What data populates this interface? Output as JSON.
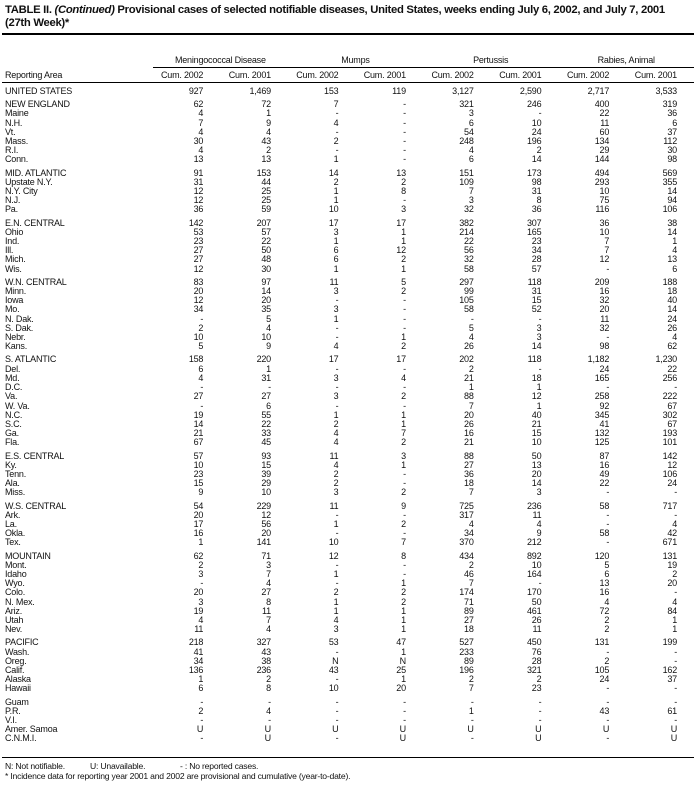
{
  "title": {
    "prefix": "TABLE II. ",
    "italic": "(Continued)",
    "text": " Provisional cases of selected notifiable diseases, United States, weeks ending July 6, 2002, and July 7, 2001 (27th Week)*"
  },
  "header": {
    "area_label": "Reporting Area",
    "groups": [
      "Meningococcal Disease",
      "Mumps",
      "Pertussis",
      "Rabies, Animal"
    ],
    "subcols": [
      "Cum. 2002",
      "Cum. 2001",
      "Cum. 2002",
      "Cum. 2001",
      "Cum. 2002",
      "Cum. 2001",
      "Cum. 2002",
      "Cum. 2001"
    ]
  },
  "sections": [
    [
      [
        "UNITED STATES",
        "927",
        "1,469",
        "153",
        "119",
        "3,127",
        "2,590",
        "2,717",
        "3,533"
      ]
    ],
    [
      [
        "NEW ENGLAND",
        "62",
        "72",
        "7",
        "-",
        "321",
        "246",
        "400",
        "319"
      ],
      [
        "Maine",
        "4",
        "1",
        "-",
        "-",
        "3",
        "-",
        "22",
        "36"
      ],
      [
        "N.H.",
        "7",
        "9",
        "4",
        "-",
        "6",
        "10",
        "11",
        "6"
      ],
      [
        "Vt.",
        "4",
        "4",
        "-",
        "-",
        "54",
        "24",
        "60",
        "37"
      ],
      [
        "Mass.",
        "30",
        "43",
        "2",
        "-",
        "248",
        "196",
        "134",
        "112"
      ],
      [
        "R.I.",
        "4",
        "2",
        "-",
        "-",
        "4",
        "2",
        "29",
        "30"
      ],
      [
        "Conn.",
        "13",
        "13",
        "1",
        "-",
        "6",
        "14",
        "144",
        "98"
      ]
    ],
    [
      [
        "MID. ATLANTIC",
        "91",
        "153",
        "14",
        "13",
        "151",
        "173",
        "494",
        "569"
      ],
      [
        "Upstate N.Y.",
        "31",
        "44",
        "2",
        "2",
        "109",
        "98",
        "293",
        "355"
      ],
      [
        "N.Y. City",
        "12",
        "25",
        "1",
        "8",
        "7",
        "31",
        "10",
        "14"
      ],
      [
        "N.J.",
        "12",
        "25",
        "1",
        "-",
        "3",
        "8",
        "75",
        "94"
      ],
      [
        "Pa.",
        "36",
        "59",
        "10",
        "3",
        "32",
        "36",
        "116",
        "106"
      ]
    ],
    [
      [
        "E.N. CENTRAL",
        "142",
        "207",
        "17",
        "17",
        "382",
        "307",
        "36",
        "38"
      ],
      [
        "Ohio",
        "53",
        "57",
        "3",
        "1",
        "214",
        "165",
        "10",
        "14"
      ],
      [
        "Ind.",
        "23",
        "22",
        "1",
        "1",
        "22",
        "23",
        "7",
        "1"
      ],
      [
        "Ill.",
        "27",
        "50",
        "6",
        "12",
        "56",
        "34",
        "7",
        "4"
      ],
      [
        "Mich.",
        "27",
        "48",
        "6",
        "2",
        "32",
        "28",
        "12",
        "13"
      ],
      [
        "Wis.",
        "12",
        "30",
        "1",
        "1",
        "58",
        "57",
        "-",
        "6"
      ]
    ],
    [
      [
        "W.N. CENTRAL",
        "83",
        "97",
        "11",
        "5",
        "297",
        "118",
        "209",
        "188"
      ],
      [
        "Minn.",
        "20",
        "14",
        "3",
        "2",
        "99",
        "31",
        "16",
        "18"
      ],
      [
        "Iowa",
        "12",
        "20",
        "-",
        "-",
        "105",
        "15",
        "32",
        "40"
      ],
      [
        "Mo.",
        "34",
        "35",
        "3",
        "-",
        "58",
        "52",
        "20",
        "14"
      ],
      [
        "N. Dak.",
        "-",
        "5",
        "1",
        "-",
        "-",
        "-",
        "11",
        "24"
      ],
      [
        "S. Dak.",
        "2",
        "4",
        "-",
        "-",
        "5",
        "3",
        "32",
        "26"
      ],
      [
        "Nebr.",
        "10",
        "10",
        "-",
        "1",
        "4",
        "3",
        "-",
        "4"
      ],
      [
        "Kans.",
        "5",
        "9",
        "4",
        "2",
        "26",
        "14",
        "98",
        "62"
      ]
    ],
    [
      [
        "S. ATLANTIC",
        "158",
        "220",
        "17",
        "17",
        "202",
        "118",
        "1,182",
        "1,230"
      ],
      [
        "Del.",
        "6",
        "1",
        "-",
        "-",
        "2",
        "-",
        "24",
        "22"
      ],
      [
        "Md.",
        "4",
        "31",
        "3",
        "4",
        "21",
        "18",
        "165",
        "256"
      ],
      [
        "D.C.",
        "-",
        "-",
        "-",
        "-",
        "1",
        "1",
        "-",
        "-"
      ],
      [
        "Va.",
        "27",
        "27",
        "3",
        "2",
        "88",
        "12",
        "258",
        "222"
      ],
      [
        "W. Va.",
        "-",
        "6",
        "-",
        "-",
        "7",
        "1",
        "92",
        "67"
      ],
      [
        "N.C.",
        "19",
        "55",
        "1",
        "1",
        "20",
        "40",
        "345",
        "302"
      ],
      [
        "S.C.",
        "14",
        "22",
        "2",
        "1",
        "26",
        "21",
        "41",
        "67"
      ],
      [
        "Ga.",
        "21",
        "33",
        "4",
        "7",
        "16",
        "15",
        "132",
        "193"
      ],
      [
        "Fla.",
        "67",
        "45",
        "4",
        "2",
        "21",
        "10",
        "125",
        "101"
      ]
    ],
    [
      [
        "E.S. CENTRAL",
        "57",
        "93",
        "11",
        "3",
        "88",
        "50",
        "87",
        "142"
      ],
      [
        "Ky.",
        "10",
        "15",
        "4",
        "1",
        "27",
        "13",
        "16",
        "12"
      ],
      [
        "Tenn.",
        "23",
        "39",
        "2",
        "-",
        "36",
        "20",
        "49",
        "106"
      ],
      [
        "Ala.",
        "15",
        "29",
        "2",
        "-",
        "18",
        "14",
        "22",
        "24"
      ],
      [
        "Miss.",
        "9",
        "10",
        "3",
        "2",
        "7",
        "3",
        "-",
        "-"
      ]
    ],
    [
      [
        "W.S. CENTRAL",
        "54",
        "229",
        "11",
        "9",
        "725",
        "236",
        "58",
        "717"
      ],
      [
        "Ark.",
        "20",
        "12",
        "-",
        "-",
        "317",
        "11",
        "-",
        "-"
      ],
      [
        "La.",
        "17",
        "56",
        "1",
        "2",
        "4",
        "4",
        "-",
        "4"
      ],
      [
        "Okla.",
        "16",
        "20",
        "-",
        "-",
        "34",
        "9",
        "58",
        "42"
      ],
      [
        "Tex.",
        "1",
        "141",
        "10",
        "7",
        "370",
        "212",
        "-",
        "671"
      ]
    ],
    [
      [
        "MOUNTAIN",
        "62",
        "71",
        "12",
        "8",
        "434",
        "892",
        "120",
        "131"
      ],
      [
        "Mont.",
        "2",
        "3",
        "-",
        "-",
        "2",
        "10",
        "5",
        "19"
      ],
      [
        "Idaho",
        "3",
        "7",
        "1",
        "-",
        "46",
        "164",
        "6",
        "2"
      ],
      [
        "Wyo.",
        "-",
        "4",
        "-",
        "1",
        "7",
        "-",
        "13",
        "20"
      ],
      [
        "Colo.",
        "20",
        "27",
        "2",
        "2",
        "174",
        "170",
        "16",
        "-"
      ],
      [
        "N. Mex.",
        "3",
        "8",
        "1",
        "2",
        "71",
        "50",
        "4",
        "4"
      ],
      [
        "Ariz.",
        "19",
        "11",
        "1",
        "1",
        "89",
        "461",
        "72",
        "84"
      ],
      [
        "Utah",
        "4",
        "7",
        "4",
        "1",
        "27",
        "26",
        "2",
        "1"
      ],
      [
        "Nev.",
        "11",
        "4",
        "3",
        "1",
        "18",
        "11",
        "2",
        "1"
      ]
    ],
    [
      [
        "PACIFIC",
        "218",
        "327",
        "53",
        "47",
        "527",
        "450",
        "131",
        "199"
      ],
      [
        "Wash.",
        "41",
        "43",
        "-",
        "1",
        "233",
        "76",
        "-",
        "-"
      ],
      [
        "Oreg.",
        "34",
        "38",
        "N",
        "N",
        "89",
        "28",
        "2",
        "-"
      ],
      [
        "Calif.",
        "136",
        "236",
        "43",
        "25",
        "196",
        "321",
        "105",
        "162"
      ],
      [
        "Alaska",
        "1",
        "2",
        "-",
        "1",
        "2",
        "2",
        "24",
        "37"
      ],
      [
        "Hawaii",
        "6",
        "8",
        "10",
        "20",
        "7",
        "23",
        "-",
        "-"
      ]
    ],
    [
      [
        "Guam",
        "-",
        "-",
        "-",
        "-",
        "-",
        "-",
        "-",
        "-"
      ],
      [
        "P.R.",
        "2",
        "4",
        "-",
        "-",
        "1",
        "-",
        "43",
        "61"
      ],
      [
        "V.I.",
        "-",
        "-",
        "-",
        "-",
        "-",
        "-",
        "-",
        "-"
      ],
      [
        "Amer. Samoa",
        "U",
        "U",
        "U",
        "U",
        "U",
        "U",
        "U",
        "U"
      ],
      [
        "C.N.M.I.",
        "-",
        "U",
        "-",
        "U",
        "-",
        "U",
        "-",
        "U"
      ]
    ]
  ],
  "footer": {
    "legend": [
      "N: Not notifiable.",
      "U: Unavailable.",
      "- : No reported cases."
    ],
    "note": "* Incidence data for reporting year 2001 and 2002 are provisional and cumulative (year-to-date)."
  }
}
